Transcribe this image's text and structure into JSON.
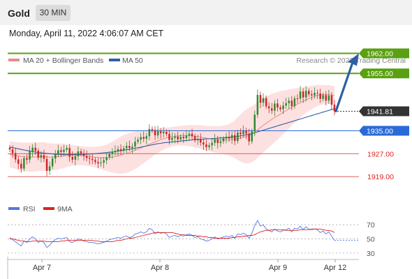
{
  "header": {
    "title": "Gold",
    "timeframe": "30 MIN",
    "timestamp": "Monday, April 11, 2022 4:06:07 AM CET"
  },
  "legend": {
    "ma20_label": "MA 20 + Bollinger Bands",
    "ma50_label": "MA 50",
    "copyright": "Research © 2022 Trading Central",
    "rsi_label": "RSI",
    "ma9_label": "9MA"
  },
  "colors": {
    "resistance": "#5aa012",
    "pivot": "#2a6ad8",
    "support": "#e06060",
    "last_price": "#333333",
    "ma20": "#e88a8a",
    "ma50": "#3060a0",
    "bollinger_fill": "#fde0e0",
    "candle_up": "#2f8a30",
    "candle_down": "#c82828",
    "arrow": "#2d5fa3",
    "rsi_line": "#5577dd",
    "rsi_ma": "#dd2222"
  },
  "chart_data": [
    {
      "type": "candlestick",
      "instrument": "Gold",
      "timeframe": "30 MIN",
      "x_ticks": [
        "Apr 7",
        "Apr 8",
        "Apr 9",
        "Apr 12"
      ],
      "y_range": [
        1912,
        1966
      ],
      "levels": [
        {
          "value": 1962.0,
          "label": "1962.00",
          "kind": "resistance"
        },
        {
          "value": 1955.0,
          "label": "1955.00",
          "kind": "resistance"
        },
        {
          "value": 1941.81,
          "label": "1941.81",
          "kind": "last"
        },
        {
          "value": 1935.0,
          "label": "1935.00",
          "kind": "pivot"
        },
        {
          "value": 1927.0,
          "label": "1927.00",
          "kind": "support"
        },
        {
          "value": 1919.0,
          "label": "1919.00",
          "kind": "support"
        }
      ],
      "close": [
        1928.5,
        1927.2,
        1925.0,
        1923.5,
        1921.8,
        1925.4,
        1924.9,
        1927.8,
        1929.1,
        1928.0,
        1925.6,
        1926.5,
        1925.2,
        1921.0,
        1922.6,
        1925.3,
        1926.9,
        1928.2,
        1927.6,
        1928.4,
        1929.0,
        1925.9,
        1924.9,
        1926.1,
        1927.8,
        1927.1,
        1926.2,
        1925.5,
        1925.2,
        1924.8,
        1924.1,
        1923.6,
        1923.9,
        1924.7,
        1925.8,
        1926.9,
        1927.5,
        1928.0,
        1928.6,
        1928.1,
        1928.9,
        1929.7,
        1929.0,
        1929.5,
        1931.2,
        1931.9,
        1932.8,
        1932.2,
        1933.1,
        1935.6,
        1935.2,
        1933.4,
        1934.8,
        1934.1,
        1934.6,
        1933.9,
        1931.8,
        1932.5,
        1933.0,
        1932.0,
        1932.9,
        1932.4,
        1933.3,
        1934.0,
        1933.1,
        1931.7,
        1932.2,
        1930.9,
        1930.2,
        1929.3,
        1929.9,
        1930.8,
        1932.0,
        1930.7,
        1931.3,
        1932.3,
        1932.9,
        1932.3,
        1933.5,
        1931.4,
        1934.4,
        1933.8,
        1934.9,
        1934.0,
        1931.3,
        1934.8,
        1940.6,
        1947.5,
        1944.8,
        1946.4,
        1943.5,
        1942.8,
        1942.0,
        1944.5,
        1943.1,
        1942.5,
        1943.8,
        1944.6,
        1945.5,
        1943.6,
        1946.3,
        1946.2,
        1948.7,
        1946.6,
        1948.9,
        1947.7,
        1947.3,
        1948.2,
        1948.0,
        1946.1,
        1947.4,
        1945.5,
        1947.3,
        1944.1,
        1941.8
      ],
      "ma20": [
        1926.8,
        1926.6,
        1926.4,
        1926.2,
        1926.0,
        1925.9,
        1925.8,
        1925.8,
        1925.8,
        1925.9,
        1925.9,
        1926.0,
        1926.0,
        1925.9,
        1925.8,
        1925.8,
        1925.9,
        1926.0,
        1926.1,
        1926.2,
        1926.3,
        1926.4,
        1926.4,
        1926.4,
        1926.4,
        1926.3,
        1926.2,
        1926.1,
        1926.0,
        1925.9,
        1925.8,
        1925.7,
        1925.6,
        1925.6,
        1925.6,
        1925.7,
        1925.8,
        1926.0,
        1926.2,
        1926.5,
        1926.8,
        1927.1,
        1927.4,
        1927.8,
        1928.2,
        1928.6,
        1929.0,
        1929.4,
        1929.8,
        1930.3,
        1930.7,
        1931.1,
        1931.5,
        1931.9,
        1932.2,
        1932.5,
        1932.7,
        1932.9,
        1933.1,
        1933.2,
        1933.3,
        1933.3,
        1933.3,
        1933.3,
        1933.2,
        1933.1,
        1933.0,
        1932.8,
        1932.6,
        1932.4,
        1932.2,
        1932.1,
        1932.0,
        1931.9,
        1931.8,
        1931.8,
        1931.8,
        1931.8,
        1931.9,
        1932.0,
        1932.2,
        1932.4,
        1932.7,
        1933.0,
        1933.3,
        1933.8,
        1934.5,
        1935.3,
        1936.1,
        1936.9,
        1937.6,
        1938.3,
        1939.0,
        1939.6,
        1940.2,
        1940.8,
        1941.4,
        1942.0,
        1942.6,
        1943.2,
        1943.8,
        1944.3,
        1944.8,
        1945.3,
        1945.8,
        1946.2,
        1946.6,
        1947.0,
        1947.3,
        1947.5,
        1947.6,
        1947.6,
        1947.6,
        1947.5,
        1947.3
      ],
      "ma50": [
        1929.3,
        1929.1,
        1928.9,
        1928.7,
        1928.5,
        1928.3,
        1928.1,
        1927.9,
        1927.7,
        1927.6,
        1927.4,
        1927.3,
        1927.2,
        1927.1,
        1927.0,
        1926.9,
        1926.8,
        1926.8,
        1926.7,
        1926.7,
        1926.7,
        1926.7,
        1926.7,
        1926.7,
        1926.7,
        1926.7,
        1926.8,
        1926.8,
        1926.9,
        1926.9,
        1927.0,
        1927.1,
        1927.2,
        1927.3,
        1927.4,
        1927.5,
        1927.6,
        1927.7,
        1927.9,
        1928.0,
        1928.2,
        1928.4,
        1928.5,
        1928.7,
        1928.9,
        1929.1,
        1929.3,
        1929.5,
        1929.7,
        1929.9,
        1930.1,
        1930.3,
        1930.5,
        1930.6,
        1930.8,
        1930.9,
        1931.0,
        1931.1,
        1931.2,
        1931.3,
        1931.4,
        1931.5,
        1931.6,
        1931.7,
        1931.8,
        1931.9,
        1932.0,
        1932.0,
        1932.1,
        1932.2,
        1932.2,
        1932.3,
        1932.3,
        1932.4,
        1932.5,
        1932.5,
        1932.6,
        1932.7,
        1932.8,
        1932.9,
        1933.0,
        1933.2,
        1933.4,
        1933.6,
        1933.8,
        1934.0,
        1934.3,
        1934.6,
        1934.9,
        1935.2,
        1935.5,
        1935.8,
        1936.1,
        1936.4,
        1936.7,
        1937.0,
        1937.3,
        1937.6,
        1937.9,
        1938.2,
        1938.5,
        1938.8,
        1939.1,
        1939.4,
        1939.7,
        1940.0,
        1940.3,
        1940.6,
        1940.9,
        1941.2,
        1941.5,
        1941.8,
        1942.1,
        1942.4,
        1942.7
      ],
      "bb_width": [
        4.5,
        4.6,
        4.7,
        4.8,
        4.9,
        5.0,
        5.0,
        5.1,
        5.1,
        5.1,
        5.0,
        5.0,
        5.0,
        4.9,
        4.8,
        4.7,
        4.6,
        4.5,
        4.4,
        4.2,
        4.0,
        3.8,
        3.6,
        3.5,
        3.4,
        3.3,
        3.3,
        3.3,
        3.4,
        3.5,
        3.6,
        3.8,
        4.0,
        4.3,
        4.6,
        5.0,
        5.4,
        5.8,
        6.2,
        6.5,
        6.7,
        6.8,
        6.8,
        6.7,
        6.5,
        6.3,
        6.0,
        5.7,
        5.4,
        5.1,
        4.8,
        4.5,
        4.2,
        4.0,
        3.8,
        3.6,
        3.5,
        3.4,
        3.4,
        3.4,
        3.4,
        3.5,
        3.6,
        3.7,
        3.8,
        3.9,
        4.0,
        4.1,
        4.2,
        4.3,
        4.4,
        4.5,
        4.6,
        4.7,
        4.8,
        5.0,
        5.2,
        5.5,
        6.0,
        6.6,
        7.4,
        8.2,
        8.9,
        9.4,
        9.7,
        9.8,
        9.8,
        9.7,
        9.6,
        9.5,
        9.3,
        9.1,
        8.9,
        8.6,
        8.3,
        8.0,
        7.6,
        7.2,
        6.8,
        6.4,
        6.0,
        5.6,
        5.2,
        4.9,
        4.6,
        4.3,
        4.1,
        3.9,
        3.7,
        3.5,
        3.4,
        3.3,
        3.3,
        3.2,
        3.2
      ],
      "forecast": {
        "from": 1941.81,
        "to": 1962.0
      }
    },
    {
      "type": "line",
      "title": "RSI",
      "y_ticks": [
        70,
        50,
        30
      ],
      "y_range": [
        25,
        80
      ],
      "series": [
        {
          "name": "RSI",
          "values": [
            52,
            49,
            46,
            43,
            40,
            47,
            45,
            50,
            53,
            50,
            45,
            47,
            45,
            38,
            41,
            46,
            49,
            51,
            50,
            51,
            52,
            46,
            45,
            47,
            50,
            49,
            47,
            46,
            45,
            45,
            44,
            43,
            44,
            45,
            47,
            49,
            50,
            51,
            52,
            51,
            53,
            54,
            52,
            53,
            57,
            58,
            60,
            58,
            60,
            65,
            63,
            57,
            60,
            58,
            59,
            57,
            52,
            54,
            55,
            53,
            55,
            54,
            56,
            57,
            55,
            52,
            53,
            50,
            49,
            47,
            48,
            50,
            53,
            50,
            51,
            53,
            54,
            53,
            55,
            51,
            57,
            56,
            58,
            56,
            51,
            58,
            69,
            76,
            68,
            70,
            64,
            62,
            60,
            64,
            61,
            60,
            62,
            63,
            65,
            60,
            65,
            64,
            68,
            63,
            67,
            64,
            63,
            64,
            63,
            59,
            61,
            57,
            60,
            54,
            48
          ]
        },
        {
          "name": "9MA",
          "values": [
            50,
            50,
            49,
            48,
            47,
            47,
            46,
            46,
            47,
            47,
            47,
            47,
            47,
            46,
            46,
            46,
            46,
            46,
            47,
            47,
            48,
            48,
            48,
            48,
            48,
            48,
            48,
            48,
            48,
            48,
            47,
            47,
            46,
            46,
            46,
            46,
            46,
            47,
            48,
            48,
            49,
            50,
            51,
            51,
            52,
            53,
            54,
            55,
            56,
            57,
            58,
            59,
            59,
            59,
            59,
            59,
            59,
            59,
            58,
            57,
            56,
            56,
            55,
            55,
            55,
            55,
            54,
            54,
            53,
            53,
            52,
            52,
            51,
            51,
            51,
            51,
            51,
            51,
            52,
            52,
            53,
            53,
            54,
            54,
            55,
            55,
            56,
            58,
            60,
            61,
            62,
            62,
            63,
            63,
            63,
            63,
            63,
            62,
            62,
            62,
            62,
            62,
            63,
            63,
            63,
            63,
            64,
            64,
            64,
            64,
            63,
            62,
            62,
            61,
            59
          ]
        }
      ]
    }
  ]
}
